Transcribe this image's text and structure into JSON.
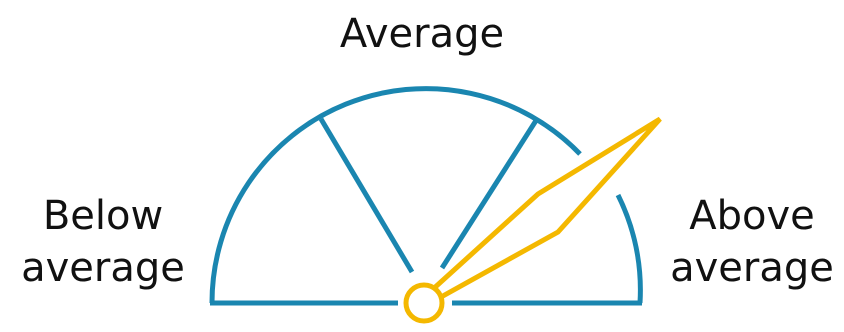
{
  "labels": {
    "top": "Average",
    "left": [
      "Below",
      "average"
    ],
    "right": [
      "Above",
      "average"
    ]
  },
  "gauge": {
    "segments": [
      "Below average",
      "Average",
      "Above average"
    ],
    "needle_reading": "Above average",
    "colors": {
      "dial": "#1a86b0",
      "needle": "#f4b800"
    }
  }
}
